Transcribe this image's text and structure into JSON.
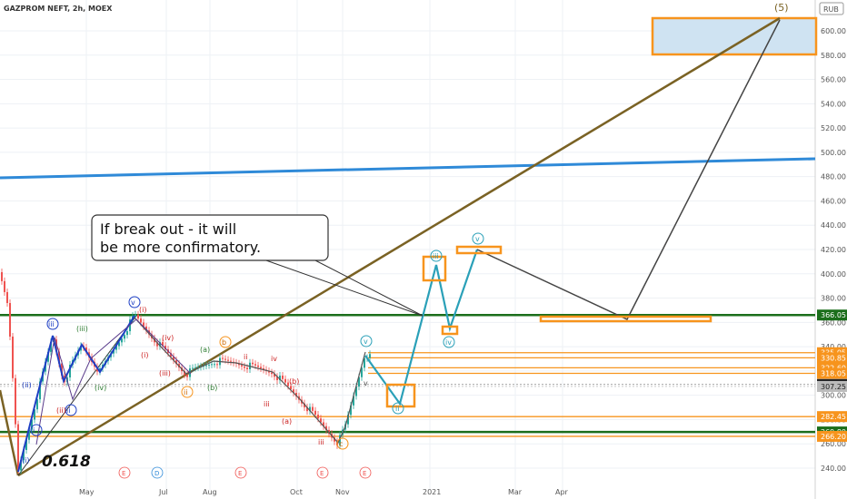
{
  "header": {
    "title": "GAZPROM NEFT, 2h, MOEX",
    "currency": "RUB"
  },
  "chart_data": {
    "type": "line",
    "x_ticks": [
      "May",
      "Jul",
      "Aug",
      "Oct",
      "Nov",
      "2021",
      "Mar",
      "Apr"
    ],
    "y_ticks": [
      240,
      260,
      280,
      300,
      320,
      340,
      360,
      380,
      400,
      420,
      440,
      460,
      480,
      500,
      520,
      540,
      560,
      580,
      600
    ],
    "ylim": [
      232,
      614
    ],
    "grid": true,
    "price_labels": [
      {
        "text": "366.05",
        "value": 366.05,
        "style": "green"
      },
      {
        "text": "335.05",
        "value": 335.05,
        "style": "orange"
      },
      {
        "text": "330.85",
        "value": 330.85,
        "style": "orange"
      },
      {
        "text": "322.60",
        "value": 322.6,
        "style": "orange"
      },
      {
        "text": "318.05",
        "value": 318.05,
        "style": "orange"
      },
      {
        "text": "308.90",
        "value": 308.9,
        "style": "dark"
      },
      {
        "text": "307.25",
        "value": 307.25,
        "style": "gray"
      },
      {
        "text": "282.45",
        "value": 282.45,
        "style": "orange"
      },
      {
        "text": "269.80",
        "value": 269.8,
        "style": "green"
      },
      {
        "text": "266.20",
        "value": 266.2,
        "style": "orange"
      }
    ],
    "annotation": "If break out - it will be more confirmatory.",
    "fib_label": "0.618",
    "target_label": "(5)",
    "event_markers": [
      "E",
      "D",
      "E",
      "E",
      "E"
    ],
    "colors": {
      "up": "#26a69a",
      "down": "#ef5350",
      "trend": "#7a6224",
      "blue_line": "#2f8ad8",
      "level_green": "#1b6e1b",
      "level_orange": "#f7941d",
      "projection": "#2aa0b8",
      "box_fill": "#cfe3f2"
    }
  }
}
